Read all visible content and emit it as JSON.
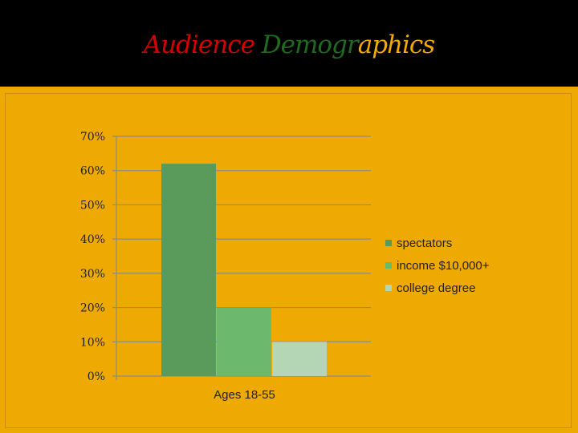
{
  "title_parts": [
    {
      "text": "Audience ",
      "color": "#d40000"
    },
    {
      "text": "Demogr",
      "color": "#1f6b1f"
    },
    {
      "text": "aphics",
      "color": "#f5a800"
    }
  ],
  "colors": {
    "background": "#000000",
    "panel": "#efa903",
    "gridline": "#8a8a8a"
  },
  "chart_data": {
    "type": "bar",
    "categories": [
      "Ages 18-55"
    ],
    "series": [
      {
        "name": "spectators",
        "values": [
          62
        ],
        "color": "#5a9a5a"
      },
      {
        "name": "income $10,000+",
        "values": [
          20
        ],
        "color": "#6cb86c"
      },
      {
        "name": "college degree",
        "values": [
          10
        ],
        "color": "#b4d6b4"
      }
    ],
    "ylim": [
      0,
      70
    ],
    "yticks": [
      0,
      10,
      20,
      30,
      40,
      50,
      60,
      70
    ],
    "ytick_labels": [
      "0%",
      "10%",
      "20%",
      "30%",
      "40%",
      "50%",
      "60%",
      "70%"
    ],
    "grid": true,
    "legend": "right",
    "title": "Audience Demographics",
    "xlabel": "",
    "ylabel": ""
  }
}
